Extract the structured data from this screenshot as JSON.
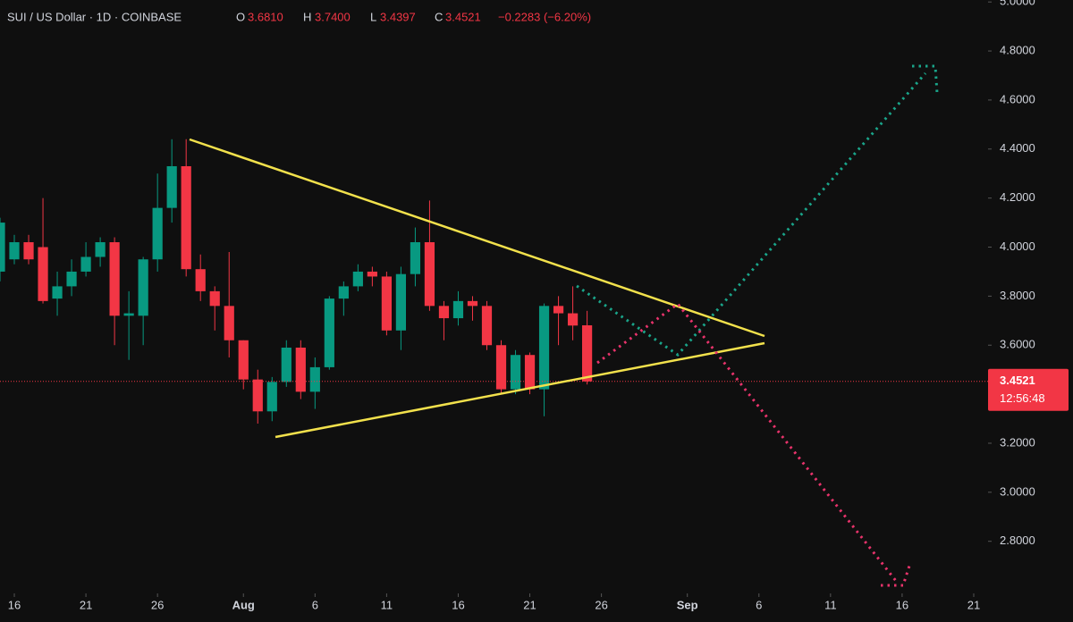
{
  "chart_data": {
    "type": "candlestick",
    "title": "SUI / US Dollar · 1D · COINBASE",
    "ohlc_header": {
      "open_key": "O",
      "open": "3.6810",
      "high_key": "H",
      "high": "3.7400",
      "low_key": "L",
      "low": "3.4397",
      "close_key": "C",
      "close": "3.4521",
      "change": "−0.2283 (−6.20%)"
    },
    "x": [
      "07-15",
      "07-16",
      "07-17",
      "07-18",
      "07-19",
      "07-20",
      "07-21",
      "07-22",
      "07-23",
      "07-24",
      "07-25",
      "07-26",
      "07-27",
      "07-28",
      "07-29",
      "07-30",
      "07-31",
      "08-01",
      "08-02",
      "08-03",
      "08-04",
      "08-05",
      "08-06",
      "08-07",
      "08-08",
      "08-09",
      "08-10",
      "08-11",
      "08-12",
      "08-13",
      "08-14",
      "08-15",
      "08-16",
      "08-17",
      "08-18",
      "08-19",
      "08-20",
      "08-21",
      "08-22",
      "08-23",
      "08-24",
      "08-25"
    ],
    "open": [
      3.9,
      3.95,
      4.02,
      4.0,
      3.79,
      3.84,
      3.9,
      3.96,
      4.02,
      3.72,
      3.72,
      3.95,
      4.16,
      4.33,
      3.91,
      3.82,
      3.76,
      3.62,
      3.46,
      3.33,
      3.45,
      3.59,
      3.41,
      3.51,
      3.79,
      3.84,
      3.9,
      3.88,
      3.66,
      3.89,
      4.02,
      3.76,
      3.71,
      3.78,
      3.76,
      3.6,
      3.42,
      3.56,
      3.42,
      3.76,
      3.73,
      3.681
    ],
    "high": [
      4.12,
      4.05,
      4.05,
      4.2,
      3.9,
      3.95,
      4.02,
      4.04,
      4.04,
      3.82,
      3.96,
      4.3,
      4.44,
      4.44,
      3.97,
      3.84,
      3.98,
      3.62,
      3.5,
      3.47,
      3.62,
      3.62,
      3.55,
      3.8,
      3.86,
      3.93,
      3.92,
      3.9,
      3.92,
      4.08,
      4.19,
      3.78,
      3.82,
      3.8,
      3.78,
      3.62,
      3.58,
      3.57,
      3.77,
      3.8,
      3.84,
      3.74
    ],
    "low": [
      3.86,
      3.93,
      3.93,
      3.77,
      3.72,
      3.8,
      3.88,
      3.92,
      3.6,
      3.54,
      3.6,
      3.9,
      4.1,
      3.88,
      3.78,
      3.66,
      3.55,
      3.42,
      3.28,
      3.29,
      3.43,
      3.38,
      3.34,
      3.5,
      3.72,
      3.82,
      3.84,
      3.64,
      3.58,
      3.84,
      3.74,
      3.62,
      3.68,
      3.7,
      3.58,
      3.4,
      3.4,
      3.4,
      3.31,
      3.6,
      3.62,
      3.4397
    ],
    "close": [
      4.1,
      4.02,
      3.95,
      3.78,
      3.84,
      3.9,
      3.96,
      4.02,
      3.72,
      3.73,
      3.95,
      4.16,
      4.33,
      3.91,
      3.82,
      3.76,
      3.62,
      3.46,
      3.33,
      3.45,
      3.59,
      3.41,
      3.51,
      3.79,
      3.84,
      3.9,
      3.88,
      3.66,
      3.89,
      4.02,
      3.76,
      3.71,
      3.78,
      3.76,
      3.6,
      3.42,
      3.56,
      3.42,
      3.76,
      3.73,
      3.68,
      3.4521
    ],
    "up_color": "#089981",
    "down_color": "#f23645",
    "ylim": [
      2.602,
      5.008
    ],
    "yticks": [
      {
        "value": 5.0,
        "label": "5.0000"
      },
      {
        "value": 4.8,
        "label": "4.8000"
      },
      {
        "value": 4.6,
        "label": "4.6000"
      },
      {
        "value": 4.4,
        "label": "4.4000"
      },
      {
        "value": 4.2,
        "label": "4.2000"
      },
      {
        "value": 4.0,
        "label": "4.0000"
      },
      {
        "value": 3.8,
        "label": "3.8000"
      },
      {
        "value": 3.6,
        "label": "3.6000"
      },
      {
        "value": 3.2,
        "label": "3.2000"
      },
      {
        "value": 3.0,
        "label": "3.0000"
      },
      {
        "value": 2.8,
        "label": "2.8000"
      }
    ],
    "xlim": [
      "07-15",
      "09-22"
    ],
    "xticks": [
      {
        "value": "07-16",
        "label": "16"
      },
      {
        "value": "07-21",
        "label": "21"
      },
      {
        "value": "07-26",
        "label": "26"
      },
      {
        "value": "08-01",
        "label": "Aug"
      },
      {
        "value": "08-06",
        "label": "6"
      },
      {
        "value": "08-11",
        "label": "11"
      },
      {
        "value": "08-16",
        "label": "16"
      },
      {
        "value": "08-21",
        "label": "21"
      },
      {
        "value": "08-26",
        "label": "26"
      },
      {
        "value": "09-01",
        "label": "Sep"
      },
      {
        "value": "09-06",
        "label": "6"
      },
      {
        "value": "09-11",
        "label": "11"
      },
      {
        "value": "09-16",
        "label": "16"
      },
      {
        "value": "09-21",
        "label": "21"
      }
    ],
    "grid": false,
    "current_price": {
      "value": 3.4521,
      "label": "3.4521"
    },
    "countdown": "12:56:48"
  }
}
